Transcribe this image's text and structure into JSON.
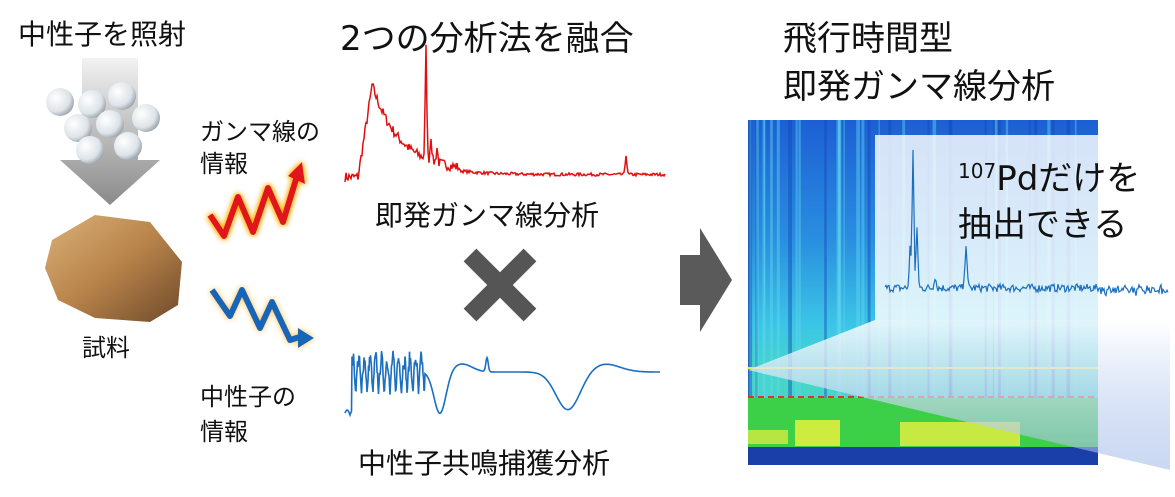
{
  "left": {
    "title": "中性子を照射",
    "sample": "試料",
    "gamma_info": [
      "ガンマ線の",
      "情報"
    ],
    "neutron_info": [
      "中性子の",
      "情報"
    ]
  },
  "center": {
    "title": "2つの分析法を融合",
    "top_label": "即発ガンマ線分析",
    "bottom_label": "中性子共鳴捕獲分析"
  },
  "right": {
    "title": [
      "飛行時間型",
      "即発ガンマ線分析"
    ],
    "callout": {
      "superscript": "107",
      "line1": "Pdだけを",
      "line2": "抽出できる"
    }
  }
}
